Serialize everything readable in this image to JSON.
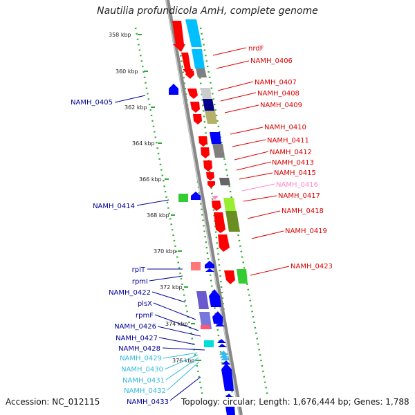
{
  "title": "Nautilia profundicola AmH, complete genome",
  "accession": "Accession: NC_012115",
  "genome_info": "Topology: circular; Length: 1,676,444 bp; Genes: 1,788",
  "colors": {
    "red": "#ff0000",
    "cyan": "#00bfff",
    "navy": "#00008b",
    "blue": "#0000ff",
    "green": "#33cc33",
    "gray": "#808080",
    "pink": "#ff77cc",
    "slate": "#6a5acd",
    "olive": "#b5b16a",
    "lightgreen": "#99ee33",
    "backbone": "#888888",
    "dots": "#33aa33"
  },
  "kbp_ticks": [
    "358 kbp",
    "360 kbp",
    "362 kbp",
    "364 kbp",
    "366 kbp",
    "368 kbp",
    "370 kbp",
    "372 kbp",
    "374 kbp",
    "376 kbp"
  ],
  "right_labels": [
    {
      "text": "nrdF",
      "color": "#dd0000"
    },
    {
      "text": "NAMH_0406",
      "color": "#dd0000"
    },
    {
      "text": "NAMH_0407",
      "color": "#dd0000"
    },
    {
      "text": "NAMH_0408",
      "color": "#dd0000"
    },
    {
      "text": "NAMH_0409",
      "color": "#dd0000"
    },
    {
      "text": "NAMH_0410",
      "color": "#dd0000"
    },
    {
      "text": "NAMH_0411",
      "color": "#dd0000"
    },
    {
      "text": "NAMH_0412",
      "color": "#dd0000"
    },
    {
      "text": "NAMH_0413",
      "color": "#dd0000"
    },
    {
      "text": "NAMH_0415",
      "color": "#dd0000"
    },
    {
      "text": "NAMH_0416",
      "color": "#ff88cc"
    },
    {
      "text": "NAMH_0417",
      "color": "#dd0000"
    },
    {
      "text": "NAMH_0418",
      "color": "#dd0000"
    },
    {
      "text": "NAMH_0419",
      "color": "#dd0000"
    },
    {
      "text": "NAMH_0423",
      "color": "#dd0000"
    }
  ],
  "left_labels": [
    {
      "text": "NAMH_0405",
      "color": "#000099"
    },
    {
      "text": "NAMH_0414",
      "color": "#000099"
    },
    {
      "text": "rplT",
      "color": "#000099"
    },
    {
      "text": "rpmI",
      "color": "#000099"
    },
    {
      "text": "NAMH_0422",
      "color": "#000099"
    },
    {
      "text": "plsX",
      "color": "#000099"
    },
    {
      "text": "rpmF",
      "color": "#000099"
    },
    {
      "text": "NAMH_0426",
      "color": "#000099"
    },
    {
      "text": "NAMH_0427",
      "color": "#000099"
    },
    {
      "text": "NAMH_0428",
      "color": "#000099"
    },
    {
      "text": "NAMH_0429",
      "color": "#33bbdd"
    },
    {
      "text": "NAMH_0430",
      "color": "#33bbdd"
    },
    {
      "text": "NAMH_0431",
      "color": "#33bbdd"
    },
    {
      "text": "NAMH_0432",
      "color": "#33bbdd"
    },
    {
      "text": "NAMH_0433",
      "color": "#000099"
    }
  ]
}
